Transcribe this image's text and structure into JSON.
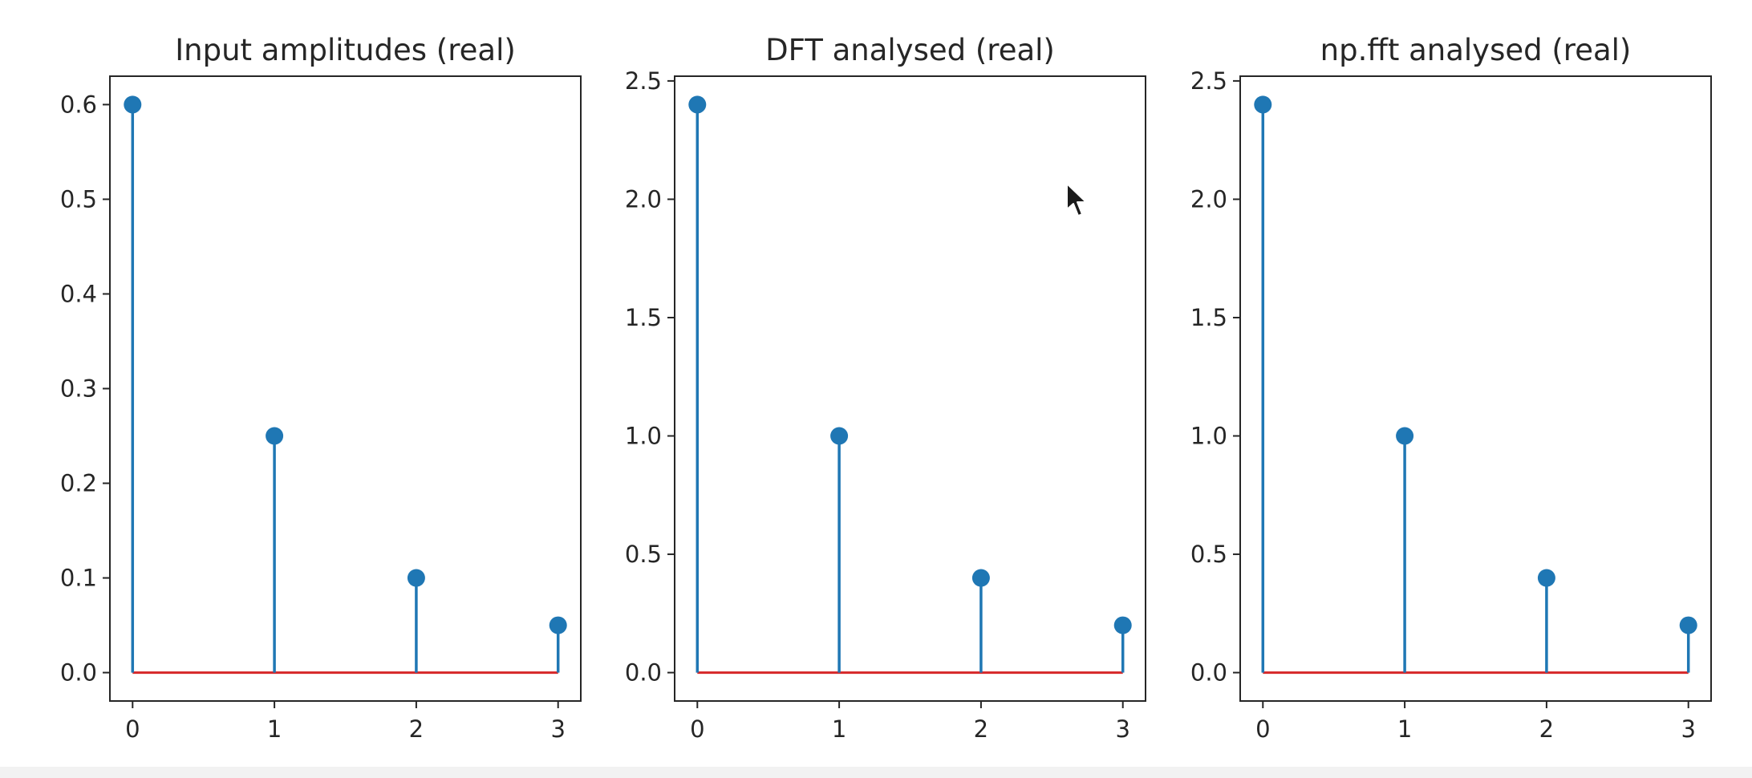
{
  "colors": {
    "stem": "#1f77b4",
    "baseline": "#d62728",
    "axes": "#262626",
    "text": "#262626",
    "background": "#ffffff"
  },
  "cursor_icon": "arrow-pointer-icon",
  "chart_data": [
    {
      "type": "stem",
      "title": "Input amplitudes (real)",
      "xlabel": "",
      "ylabel": "",
      "x": [
        0,
        1,
        2,
        3
      ],
      "values": [
        0.6,
        0.25,
        0.1,
        0.05
      ],
      "xlim": [
        -0.16,
        3.16
      ],
      "ylim": [
        -0.03,
        0.63
      ],
      "xticks": [
        0,
        1,
        2,
        3
      ],
      "yticks": [
        0.0,
        0.1,
        0.2,
        0.3,
        0.4,
        0.5,
        0.6
      ],
      "ytick_labels": [
        "0.0",
        "0.1",
        "0.2",
        "0.3",
        "0.4",
        "0.5",
        "0.6"
      ],
      "grid": false,
      "baseline": 0
    },
    {
      "type": "stem",
      "title": "DFT analysed (real)",
      "xlabel": "",
      "ylabel": "",
      "x": [
        0,
        1,
        2,
        3
      ],
      "values": [
        2.4,
        1.0,
        0.4,
        0.2
      ],
      "xlim": [
        -0.16,
        3.16
      ],
      "ylim": [
        -0.12,
        2.52
      ],
      "xticks": [
        0,
        1,
        2,
        3
      ],
      "yticks": [
        0.0,
        0.5,
        1.0,
        1.5,
        2.0,
        2.5
      ],
      "ytick_labels": [
        "0.0",
        "0.5",
        "1.0",
        "1.5",
        "2.0",
        "2.5"
      ],
      "grid": false,
      "baseline": 0
    },
    {
      "type": "stem",
      "title": "np.fft analysed (real)",
      "xlabel": "",
      "ylabel": "",
      "x": [
        0,
        1,
        2,
        3
      ],
      "values": [
        2.4,
        1.0,
        0.4,
        0.2
      ],
      "xlim": [
        -0.16,
        3.16
      ],
      "ylim": [
        -0.12,
        2.52
      ],
      "xticks": [
        0,
        1,
        2,
        3
      ],
      "yticks": [
        0.0,
        0.5,
        1.0,
        1.5,
        2.0,
        2.5
      ],
      "ytick_labels": [
        "0.0",
        "0.5",
        "1.0",
        "1.5",
        "2.0",
        "2.5"
      ],
      "grid": false,
      "baseline": 0
    }
  ]
}
